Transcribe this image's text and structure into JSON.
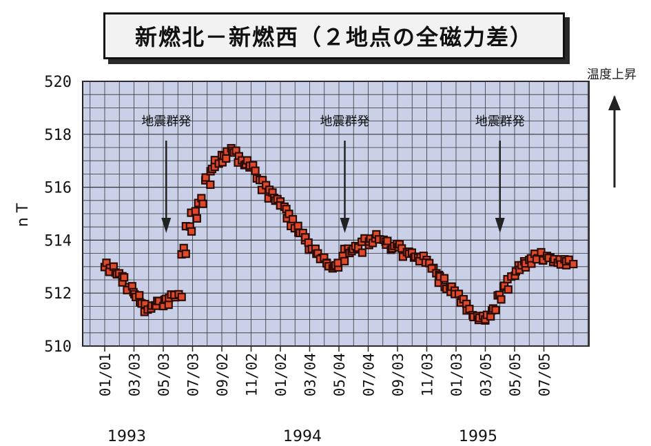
{
  "title": "新燃北－新燃西（２地点の全磁力差）",
  "chart_data": {
    "type": "scatter",
    "title": "新燃北－新燃西（２地点の全磁力差）",
    "ylabel": "n T",
    "xlabel": "",
    "ylim": [
      510,
      520
    ],
    "yticks": [
      "510",
      "512",
      "514",
      "516",
      "518",
      "520"
    ],
    "xticks": [
      "01/01",
      "03/03",
      "05/03",
      "07/03",
      "09/02",
      "11/02",
      "01/02",
      "03/04",
      "05/04",
      "07/04",
      "09/03",
      "11/03",
      "01/03",
      "03/05",
      "05/05",
      "07/05"
    ],
    "years": [
      "1993",
      "1994",
      "1995"
    ],
    "grid": true,
    "annotations": [
      {
        "text": "地震群発",
        "x_tick_index": 2.1
      },
      {
        "text": "地震群発",
        "x_tick_index": 8.2
      },
      {
        "text": "地震群発",
        "x_tick_index": 13.5
      }
    ],
    "side_label": "温度上昇",
    "marker_color": "#e0482a",
    "marker_edge_color": "#2a0c06",
    "points_x_tick_index": [
      0.0,
      0.2,
      0.4,
      0.6,
      0.8,
      1.0,
      1.2,
      1.4,
      1.6,
      1.8,
      2.0,
      2.2,
      2.4,
      2.6,
      2.8,
      3.0,
      3.2,
      3.4,
      3.6,
      3.8,
      4.0,
      4.2,
      4.4,
      4.6,
      4.8,
      5.0,
      5.2,
      5.4,
      5.6,
      5.8,
      6.0,
      6.2,
      6.4,
      6.6,
      6.8,
      7.0,
      7.2,
      7.4,
      7.6,
      7.8,
      8.0,
      8.2,
      8.4,
      8.6,
      8.8,
      9.0,
      9.2,
      9.4,
      9.6,
      9.8,
      10.0,
      10.2,
      10.4,
      10.6,
      10.8,
      11.0,
      11.2,
      11.4,
      11.6,
      11.8,
      12.0,
      12.2,
      12.4,
      12.6,
      12.8,
      13.0,
      13.2,
      13.4,
      13.6,
      13.8,
      14.0,
      14.2,
      14.4,
      14.6,
      14.8,
      15.0,
      15.2,
      15.4,
      15.6,
      15.8
    ],
    "points_y": [
      513.0,
      512.9,
      512.6,
      512.4,
      512.1,
      511.9,
      511.6,
      511.4,
      511.5,
      511.6,
      511.7,
      511.8,
      512.0,
      513.5,
      514.5,
      515.0,
      515.5,
      516.2,
      516.7,
      516.9,
      517.1,
      517.3,
      517.2,
      517.0,
      516.9,
      516.7,
      516.3,
      516.0,
      515.7,
      515.6,
      515.2,
      514.9,
      514.5,
      514.2,
      514.0,
      513.7,
      513.4,
      513.2,
      513.0,
      512.9,
      513.2,
      513.6,
      513.7,
      513.7,
      513.9,
      514.0,
      514.1,
      514.0,
      513.8,
      513.8,
      513.7,
      513.5,
      513.4,
      513.3,
      513.2,
      513.1,
      512.8,
      512.5,
      512.2,
      512.1,
      511.9,
      511.6,
      511.3,
      511.1,
      511.0,
      511.1,
      511.4,
      511.8,
      512.2,
      512.6,
      512.9,
      513.1,
      513.2,
      513.3,
      513.4,
      513.3,
      513.2,
      513.2,
      513.1,
      513.2
    ]
  }
}
